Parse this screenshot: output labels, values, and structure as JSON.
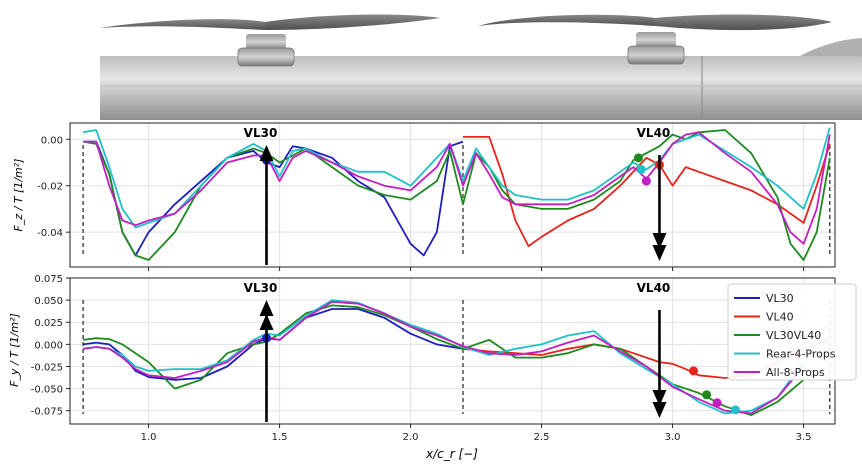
{
  "chart_data": [
    {
      "type": "line",
      "ylabel": "F_z / T [1/m²]",
      "xlim": [
        0.7,
        3.62
      ],
      "ylim": [
        -0.055,
        0.007
      ],
      "yticks": [
        "0.00",
        "-0.02",
        "-0.04"
      ],
      "ytick_values": [
        0.0,
        -0.02,
        -0.04
      ],
      "grid": true,
      "annotations": [
        {
          "text": "VL30",
          "x": 1.45,
          "direction": "up"
        },
        {
          "text": "VL40",
          "x": 2.95,
          "direction": "down"
        }
      ],
      "dividers": [
        0.75,
        2.2,
        3.6
      ],
      "series": [
        {
          "name": "VL30",
          "color": "#1f1fc0",
          "x": [
            0.75,
            0.8,
            0.85,
            0.9,
            0.95,
            1.0,
            1.1,
            1.2,
            1.3,
            1.4,
            1.45,
            1.5,
            1.55,
            1.6,
            1.7,
            1.8,
            1.9,
            2.0,
            2.05,
            2.1,
            2.15,
            2.2
          ],
          "y": [
            -0.001,
            -0.001,
            -0.015,
            -0.04,
            -0.05,
            -0.04,
            -0.028,
            -0.018,
            -0.008,
            -0.005,
            -0.01,
            -0.012,
            -0.003,
            -0.004,
            -0.008,
            -0.018,
            -0.025,
            -0.045,
            -0.05,
            -0.04,
            -0.003,
            -0.001
          ],
          "marker": {
            "x": 1.45,
            "y": -0.009
          }
        },
        {
          "name": "VL40",
          "color": "#e8231b",
          "x": [
            2.2,
            2.3,
            2.35,
            2.4,
            2.45,
            2.5,
            2.6,
            2.7,
            2.8,
            2.9,
            2.95,
            3.0,
            3.05,
            3.1,
            3.2,
            3.3,
            3.4,
            3.5,
            3.55,
            3.6
          ],
          "y": [
            0.001,
            0.001,
            -0.015,
            -0.035,
            -0.046,
            -0.042,
            -0.035,
            -0.03,
            -0.02,
            -0.008,
            -0.011,
            -0.02,
            -0.012,
            -0.014,
            -0.018,
            -0.022,
            -0.028,
            -0.036,
            -0.02,
            -0.002
          ],
          "marker": {
            "x": 2.95,
            "y": -0.011
          }
        },
        {
          "name": "VL30VL40",
          "color": "#1e8a1e",
          "x": [
            0.75,
            0.8,
            0.85,
            0.9,
            0.95,
            1.0,
            1.1,
            1.2,
            1.3,
            1.4,
            1.45,
            1.5,
            1.55,
            1.6,
            1.7,
            1.8,
            1.9,
            2.0,
            2.1,
            2.15,
            2.2,
            2.25,
            2.3,
            2.35,
            2.4,
            2.5,
            2.6,
            2.7,
            2.8,
            2.85,
            2.9,
            2.95,
            3.0,
            3.05,
            3.1,
            3.2,
            3.3,
            3.4,
            3.45,
            3.5,
            3.55,
            3.6
          ],
          "y": [
            -0.001,
            -0.002,
            -0.015,
            -0.04,
            -0.05,
            -0.052,
            -0.04,
            -0.02,
            -0.008,
            -0.004,
            -0.006,
            -0.01,
            -0.007,
            -0.004,
            -0.012,
            -0.02,
            -0.024,
            -0.026,
            -0.018,
            -0.005,
            -0.028,
            -0.006,
            -0.012,
            -0.022,
            -0.028,
            -0.03,
            -0.03,
            -0.026,
            -0.018,
            -0.009,
            -0.006,
            -0.003,
            0.002,
            0.0,
            0.003,
            0.004,
            -0.006,
            -0.025,
            -0.045,
            -0.052,
            -0.04,
            -0.008
          ],
          "marker": {
            "x": 2.87,
            "y": -0.008
          }
        },
        {
          "name": "Rear-4-Props",
          "color": "#1fc0c8",
          "x": [
            0.75,
            0.8,
            0.85,
            0.9,
            0.95,
            1.0,
            1.1,
            1.2,
            1.3,
            1.4,
            1.45,
            1.5,
            1.55,
            1.6,
            1.7,
            1.8,
            1.9,
            2.0,
            2.1,
            2.15,
            2.2,
            2.25,
            2.3,
            2.35,
            2.4,
            2.5,
            2.6,
            2.7,
            2.8,
            2.85,
            2.9,
            2.95,
            3.0,
            3.05,
            3.1,
            3.2,
            3.3,
            3.4,
            3.5,
            3.55,
            3.6
          ],
          "y": [
            0.003,
            0.004,
            -0.012,
            -0.03,
            -0.038,
            -0.036,
            -0.032,
            -0.02,
            -0.008,
            -0.002,
            -0.005,
            -0.016,
            -0.005,
            -0.004,
            -0.01,
            -0.014,
            -0.014,
            -0.02,
            -0.008,
            -0.002,
            -0.018,
            -0.004,
            -0.012,
            -0.02,
            -0.024,
            -0.026,
            -0.026,
            -0.022,
            -0.014,
            -0.01,
            -0.013,
            -0.009,
            -0.002,
            0.0,
            0.002,
            -0.005,
            -0.012,
            -0.02,
            -0.03,
            -0.015,
            0.005
          ],
          "marker": {
            "x": 2.88,
            "y": -0.013
          }
        },
        {
          "name": "All-8-Props",
          "color": "#c21fc0",
          "x": [
            0.75,
            0.8,
            0.85,
            0.9,
            0.95,
            1.0,
            1.1,
            1.2,
            1.3,
            1.4,
            1.45,
            1.5,
            1.55,
            1.6,
            1.7,
            1.8,
            1.9,
            2.0,
            2.1,
            2.15,
            2.2,
            2.25,
            2.3,
            2.35,
            2.4,
            2.5,
            2.6,
            2.7,
            2.8,
            2.85,
            2.9,
            2.95,
            3.0,
            3.05,
            3.1,
            3.2,
            3.3,
            3.4,
            3.45,
            3.5,
            3.55,
            3.6
          ],
          "y": [
            -0.001,
            -0.001,
            -0.02,
            -0.035,
            -0.037,
            -0.035,
            -0.032,
            -0.022,
            -0.01,
            -0.007,
            -0.007,
            -0.018,
            -0.008,
            -0.005,
            -0.01,
            -0.016,
            -0.02,
            -0.022,
            -0.012,
            -0.002,
            -0.02,
            -0.006,
            -0.015,
            -0.025,
            -0.028,
            -0.028,
            -0.028,
            -0.024,
            -0.016,
            -0.012,
            -0.017,
            -0.01,
            -0.002,
            0.002,
            0.003,
            -0.006,
            -0.014,
            -0.028,
            -0.04,
            -0.045,
            -0.03,
            0.002
          ],
          "marker": {
            "x": 2.9,
            "y": -0.018
          }
        }
      ]
    },
    {
      "type": "line",
      "ylabel": "F_y / T [1/m²]",
      "xlabel": "x/c_r [−]",
      "xlim": [
        0.7,
        3.62
      ],
      "ylim": [
        -0.09,
        0.075
      ],
      "xticks": [
        "1.0",
        "1.5",
        "2.0",
        "2.5",
        "3.0",
        "3.5"
      ],
      "xtick_values": [
        1.0,
        1.5,
        2.0,
        2.5,
        3.0,
        3.5
      ],
      "yticks": [
        "0.075",
        "0.050",
        "0.025",
        "0.000",
        "-0.025",
        "-0.050",
        "-0.075"
      ],
      "ytick_values": [
        0.075,
        0.05,
        0.025,
        0.0,
        -0.025,
        -0.05,
        -0.075
      ],
      "grid": true,
      "legend": "top-right",
      "annotations": [
        {
          "text": "VL30",
          "x": 1.45,
          "direction": "up"
        },
        {
          "text": "VL40",
          "x": 2.95,
          "direction": "down"
        }
      ],
      "dividers": [
        0.75,
        2.2,
        3.6
      ],
      "series": [
        {
          "name": "VL30",
          "color": "#1f1fc0",
          "x": [
            0.75,
            0.8,
            0.85,
            0.9,
            0.95,
            1.0,
            1.1,
            1.2,
            1.3,
            1.4,
            1.45,
            1.5,
            1.6,
            1.7,
            1.8,
            1.9,
            2.0,
            2.1,
            2.2
          ],
          "y": [
            0.0,
            0.002,
            0.0,
            -0.012,
            -0.03,
            -0.037,
            -0.04,
            -0.038,
            -0.025,
            0.0,
            0.007,
            0.005,
            0.03,
            0.04,
            0.04,
            0.03,
            0.012,
            0.0,
            -0.005
          ],
          "marker": {
            "x": 1.45,
            "y": 0.007
          }
        },
        {
          "name": "VL40",
          "color": "#e8231b",
          "x": [
            2.2,
            2.3,
            2.4,
            2.5,
            2.6,
            2.7,
            2.8,
            2.9,
            2.95,
            3.0,
            3.05,
            3.1,
            3.2,
            3.3,
            3.4,
            3.5,
            3.6
          ],
          "y": [
            -0.005,
            -0.008,
            -0.01,
            -0.012,
            -0.005,
            0.0,
            -0.005,
            -0.015,
            -0.02,
            -0.022,
            -0.028,
            -0.035,
            -0.038,
            -0.035,
            -0.02,
            -0.005,
            0.005
          ],
          "marker": {
            "x": 3.08,
            "y": -0.03
          }
        },
        {
          "name": "VL30VL40",
          "color": "#1e8a1e",
          "x": [
            0.75,
            0.8,
            0.85,
            0.9,
            0.95,
            1.0,
            1.1,
            1.2,
            1.3,
            1.4,
            1.45,
            1.5,
            1.6,
            1.7,
            1.8,
            1.9,
            2.0,
            2.1,
            2.2,
            2.3,
            2.4,
            2.5,
            2.6,
            2.7,
            2.8,
            2.9,
            3.0,
            3.1,
            3.2,
            3.3,
            3.4,
            3.5
          ],
          "y": [
            0.005,
            0.007,
            0.006,
            0.0,
            -0.01,
            -0.02,
            -0.05,
            -0.04,
            -0.01,
            0.0,
            0.003,
            0.012,
            0.035,
            0.044,
            0.042,
            0.033,
            0.02,
            0.006,
            -0.005,
            0.005,
            -0.015,
            -0.015,
            -0.01,
            0.0,
            -0.005,
            -0.025,
            -0.045,
            -0.055,
            -0.07,
            -0.08,
            -0.065,
            -0.04
          ],
          "marker": {
            "x": 3.13,
            "y": -0.057
          }
        },
        {
          "name": "Rear-4-Props",
          "color": "#1fc0c8",
          "x": [
            0.75,
            0.8,
            0.85,
            0.9,
            0.95,
            1.0,
            1.1,
            1.2,
            1.3,
            1.4,
            1.45,
            1.5,
            1.6,
            1.7,
            1.8,
            1.9,
            2.0,
            2.1,
            2.2,
            2.3,
            2.4,
            2.5,
            2.6,
            2.7,
            2.8,
            2.9,
            3.0,
            3.1,
            3.2,
            3.3,
            3.4,
            3.5
          ],
          "y": [
            -0.005,
            -0.003,
            -0.005,
            -0.012,
            -0.025,
            -0.03,
            -0.028,
            -0.028,
            -0.018,
            0.005,
            0.012,
            0.01,
            0.032,
            0.05,
            0.047,
            0.035,
            0.022,
            0.012,
            -0.003,
            -0.012,
            -0.005,
            0.0,
            0.01,
            0.015,
            -0.01,
            -0.028,
            -0.045,
            -0.065,
            -0.078,
            -0.075,
            -0.06,
            -0.02
          ],
          "marker": {
            "x": 3.24,
            "y": -0.074
          }
        },
        {
          "name": "All-8-Props",
          "color": "#c21fc0",
          "x": [
            0.75,
            0.8,
            0.85,
            0.9,
            0.95,
            1.0,
            1.1,
            1.2,
            1.3,
            1.4,
            1.45,
            1.5,
            1.6,
            1.7,
            1.8,
            1.9,
            2.0,
            2.1,
            2.2,
            2.3,
            2.4,
            2.5,
            2.6,
            2.7,
            2.8,
            2.9,
            3.0,
            3.1,
            3.2,
            3.3,
            3.4,
            3.5
          ],
          "y": [
            -0.005,
            -0.003,
            -0.005,
            -0.015,
            -0.028,
            -0.035,
            -0.038,
            -0.03,
            -0.02,
            0.003,
            0.008,
            0.005,
            0.03,
            0.048,
            0.046,
            0.035,
            0.02,
            0.01,
            -0.002,
            -0.01,
            -0.012,
            -0.008,
            0.002,
            0.01,
            -0.008,
            -0.025,
            -0.048,
            -0.062,
            -0.075,
            -0.078,
            -0.06,
            -0.025
          ],
          "marker": {
            "x": 3.17,
            "y": -0.066
          }
        }
      ]
    }
  ],
  "colors": {
    "background": "#ffffff",
    "grid": "#e2e2e2",
    "axes": "#222222",
    "fuselage": "#a9a9a9"
  }
}
